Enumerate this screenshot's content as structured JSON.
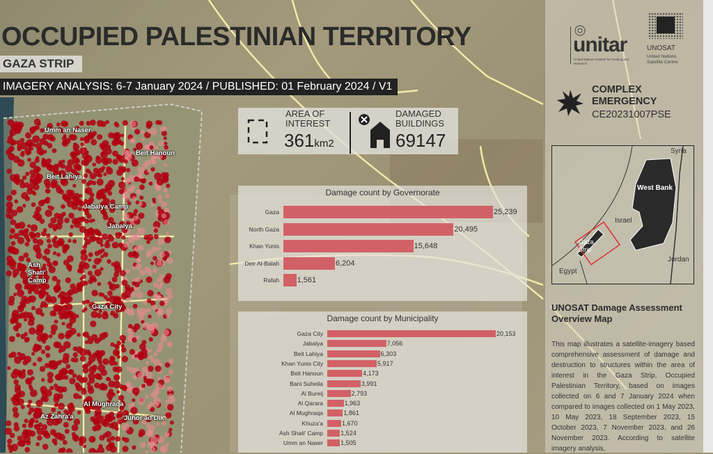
{
  "header": {
    "title": "OCCUPIED PALESTINIAN TERRITORY",
    "subtitle": "GAZA STRIP",
    "imagery_line": "IMAGERY ANALYSIS: 6-7 January 2024 / PUBLISHED: 01 February 2024 / V1"
  },
  "stats": {
    "area_label_1": "AREA OF",
    "area_label_2": "INTEREST",
    "area_value": "361",
    "area_unit": "km2",
    "damaged_label_1": "DAMAGED",
    "damaged_label_2": "BUILDINGS",
    "damaged_value": "69147"
  },
  "logos": {
    "unitar": "unitar",
    "unitar_sub": "United Nations Institute for Training and Research",
    "unosat": "UNOSAT",
    "unosat_sub": "United Nations Satellite Centre"
  },
  "emergency": {
    "line1": "COMPLEX",
    "line2": "EMERGENCY",
    "code": "CE20231007PSE"
  },
  "inset_map": {
    "labels": [
      "Syria",
      "West Bank",
      "Israel",
      "Gaza Strip",
      "Jordan",
      "Egypt"
    ]
  },
  "description": {
    "title": "UNOSAT Damage Assessment Overview Map",
    "body": "This map illustrates a satellite-imagery based comprehensive assessment of damage and destruction to structures within the area of interest in the Gaza Strip, Occupied Palestinian Territory, based on images collected on 6 and 7 January 2024 when compared to images collected on 1 May 2023, 10 May 2023, 18 September 2023, 15 October 2023, 7 November 2023, and 26 November 2023. According to satellite imagery analysis,"
  },
  "map_labels": [
    "Umm an Naser",
    "Beit Hanoun",
    "Beit Lahiya",
    "Jabalya Camp",
    "Jabalya",
    "Ash Shati' Camp",
    "Gaza City",
    "Al Mughraqa",
    "Az Zahra'a",
    "Juhor ad Dik"
  ],
  "colors": {
    "bar": "#d26167",
    "damage_points": "#b00010",
    "aoi_box": "#e03030"
  },
  "chart_data": [
    {
      "type": "bar",
      "orientation": "horizontal",
      "title": "Damage count by Governorate",
      "categories": [
        "Gaza",
        "North Gaza",
        "Khan Yunis",
        "Deir Al-Balah",
        "Rafah"
      ],
      "values": [
        25239,
        20495,
        15648,
        6204,
        1561
      ],
      "value_labels": [
        "25,239",
        "20,495",
        "15,648",
        "6,204",
        "1,561"
      ]
    },
    {
      "type": "bar",
      "orientation": "horizontal",
      "title": "Damage count by Municipality",
      "categories": [
        "Gaza City",
        "Jabalya",
        "Beit Lahiya",
        "Khan Yunis City",
        "Beit Hanoun",
        "Bani Suheila",
        "Al Bureij",
        "Al Qarara",
        "Al Mughraqa",
        "Khuza'a",
        "Ash Shati' Camp",
        "Umm an Naser"
      ],
      "values": [
        20153,
        7056,
        6303,
        5917,
        4173,
        3991,
        2793,
        1963,
        1861,
        1670,
        1524,
        1505
      ],
      "value_labels": [
        "20,153",
        "7,056",
        "6,303",
        "5,917",
        "4,173",
        "3,991",
        "2,793",
        "1,963",
        "1,861",
        "1,670",
        "1,524",
        "1,505"
      ]
    }
  ]
}
